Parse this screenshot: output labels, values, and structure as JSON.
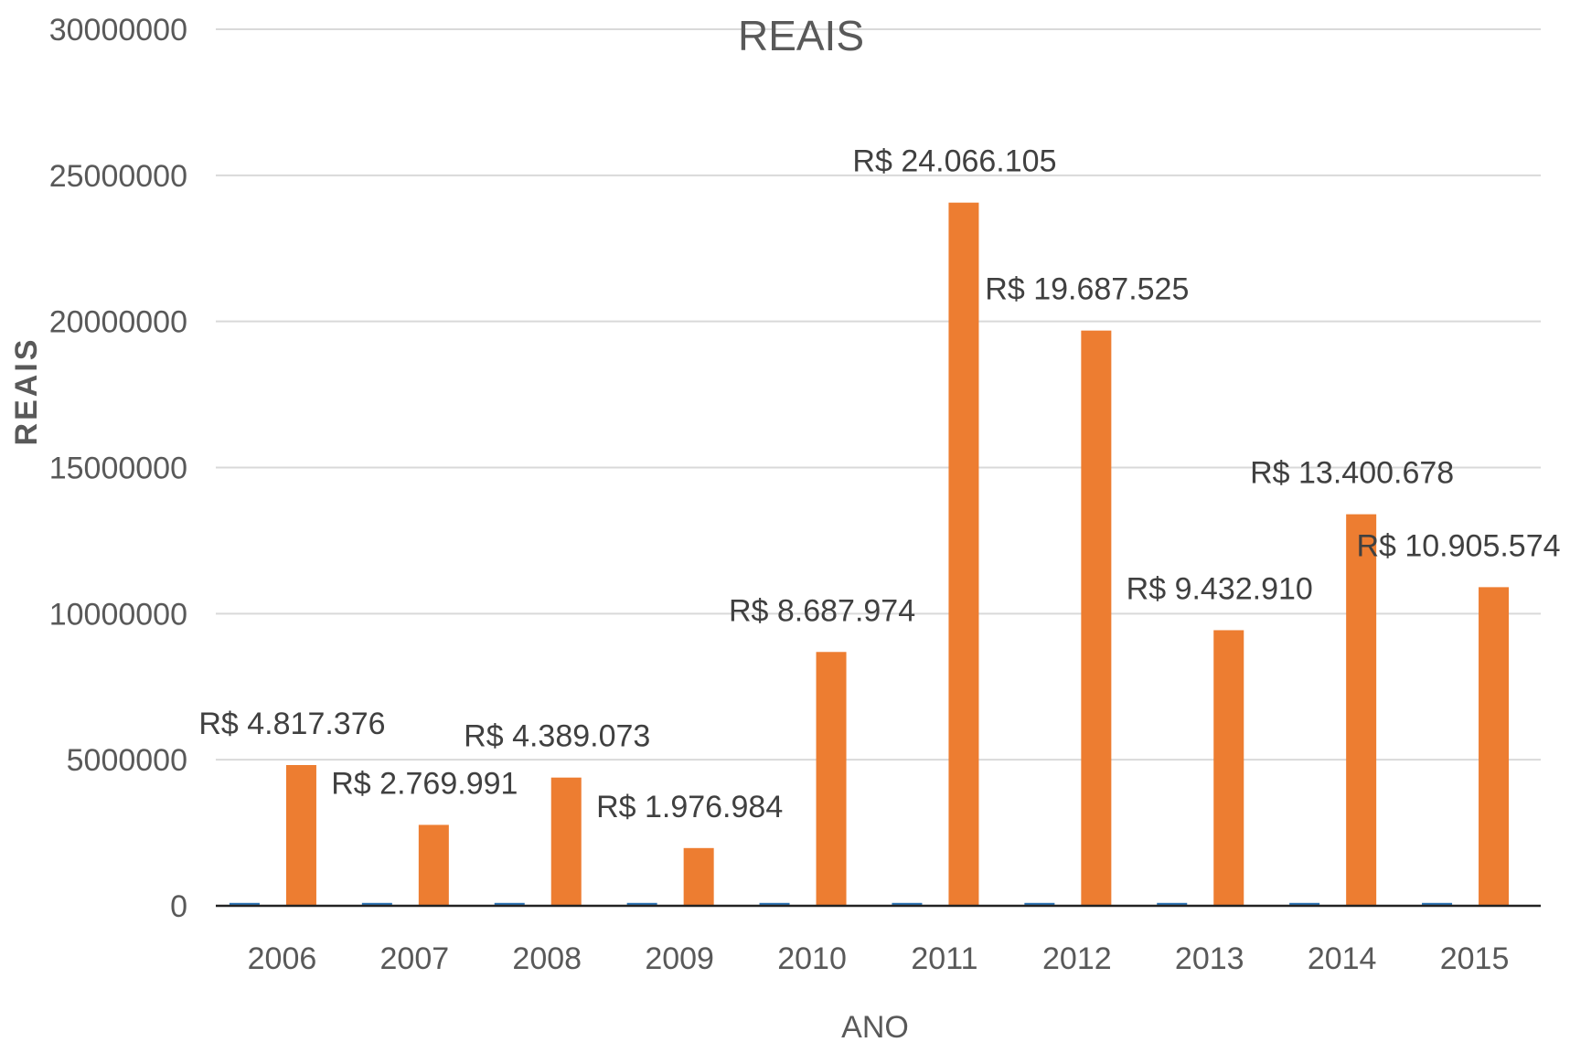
{
  "chart_data": {
    "type": "bar",
    "title": "REAIS",
    "xlabel": "ANO",
    "ylabel": "REAIS",
    "categories": [
      "2006",
      "2007",
      "2008",
      "2009",
      "2010",
      "2011",
      "2012",
      "2013",
      "2014",
      "2015"
    ],
    "series": [
      {
        "color": "#2E75B6",
        "values": [
          100000,
          100000,
          100000,
          100000,
          100000,
          100000,
          100000,
          100000,
          100000,
          100000
        ]
      },
      {
        "color": "#ED7D31",
        "values": [
          4817376,
          2769991,
          4389073,
          1976984,
          8687974,
          24066105,
          19687525,
          9432910,
          13400678,
          10905574
        ],
        "data_labels": [
          "R$ 4.817.376",
          "R$ 2.769.991",
          "R$ 4.389.073",
          "R$ 1.976.984",
          "R$ 8.687.974",
          "R$ 24.066.105",
          "R$ 19.687.525",
          "R$ 9.432.910",
          "R$ 13.400.678",
          "R$ 10.905.574"
        ]
      }
    ],
    "ylim": [
      0,
      30000000
    ],
    "yticks": [
      "0",
      "5000000",
      "10000000",
      "15000000",
      "20000000",
      "25000000",
      "30000000"
    ],
    "grid": true,
    "legend": "none"
  }
}
